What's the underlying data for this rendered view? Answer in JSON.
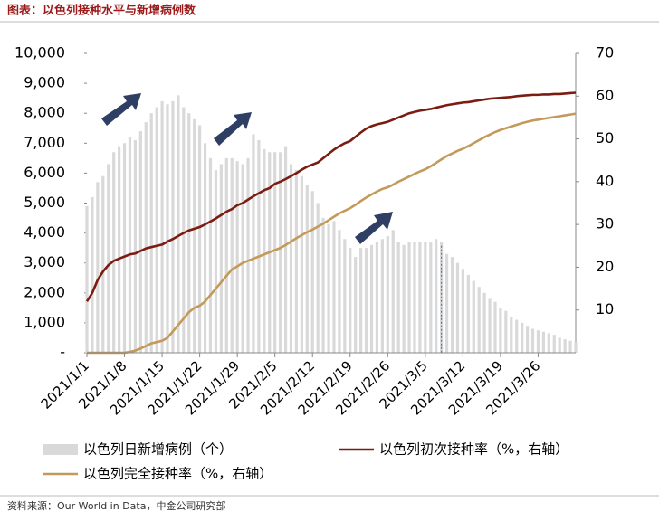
{
  "title": "图表：以色列接种水平与新增病例数",
  "source": "资料来源：Our World in Data，中金公司研究部",
  "chart_data": {
    "type": "bar",
    "categories": [
      "2021/1/1",
      null,
      null,
      null,
      null,
      null,
      null,
      "2021/1/8",
      null,
      null,
      null,
      null,
      null,
      null,
      "2021/1/15",
      null,
      null,
      null,
      null,
      null,
      null,
      "2021/1/22",
      null,
      null,
      null,
      null,
      null,
      null,
      "2021/1/29",
      null,
      null,
      null,
      null,
      null,
      null,
      "2021/2/5",
      null,
      null,
      null,
      null,
      null,
      null,
      "2021/2/12",
      null,
      null,
      null,
      null,
      null,
      null,
      "2021/2/19",
      null,
      null,
      null,
      null,
      null,
      null,
      "2021/2/26",
      null,
      null,
      null,
      null,
      null,
      null,
      "2021/3/5",
      null,
      null,
      null,
      null,
      null,
      null,
      "2021/3/12",
      null,
      null,
      null,
      null,
      null,
      null,
      "2021/3/19",
      null,
      null,
      null,
      null,
      null,
      null,
      "2021/3/26",
      null,
      null,
      null,
      null,
      null,
      null,
      null
    ],
    "series": [
      {
        "name": "以色列日新增病例（个）",
        "type": "bar",
        "color": "#d9d9d9",
        "values": [
          4900,
          5200,
          5700,
          5900,
          6300,
          6700,
          6900,
          7000,
          7200,
          7100,
          7400,
          7700,
          8000,
          8200,
          8400,
          8300,
          8400,
          8600,
          8200,
          8000,
          7800,
          7600,
          7000,
          6500,
          6100,
          6300,
          6500,
          6500,
          6400,
          6300,
          6500,
          7300,
          7100,
          6800,
          6700,
          6700,
          6700,
          6900,
          6300,
          6100,
          5900,
          5600,
          5400,
          5000,
          4500,
          4300,
          4400,
          4100,
          3800,
          3500,
          3200,
          3500,
          3500,
          3600,
          3700,
          3800,
          3900,
          4100,
          3700,
          3600,
          3700,
          3700,
          3700,
          3700,
          3700,
          3800,
          3700,
          3300,
          3200,
          3000,
          2800,
          2600,
          2400,
          2200,
          2000,
          1800,
          1700,
          1500,
          1400,
          1200,
          1100,
          1000,
          900,
          800,
          750,
          700,
          650,
          600,
          500,
          450,
          400,
          350
        ]
      },
      {
        "name": "以色列初次接种率（%，右轴）",
        "type": "line",
        "axis": "y2",
        "color": "#7b1c12",
        "values": [
          12,
          14,
          17,
          19,
          20.5,
          21.5,
          22,
          22.5,
          23,
          23.2,
          23.8,
          24.4,
          24.7,
          25,
          25.3,
          26,
          26.6,
          27.3,
          28,
          28.6,
          29,
          29.4,
          30,
          30.7,
          31.4,
          32.2,
          33,
          33.6,
          34.5,
          35,
          35.8,
          36.6,
          37.3,
          38,
          38.5,
          39.5,
          40,
          40.6,
          41.3,
          42,
          42.8,
          43.5,
          44,
          44.5,
          45.5,
          46.5,
          47.5,
          48.3,
          49,
          49.5,
          50.5,
          51.5,
          52.4,
          53,
          53.4,
          53.7,
          54,
          54.5,
          55,
          55.5,
          56,
          56.3,
          56.6,
          56.8,
          57,
          57.3,
          57.6,
          57.9,
          58.1,
          58.3,
          58.5,
          58.6,
          58.8,
          59,
          59.2,
          59.4,
          59.5,
          59.6,
          59.7,
          59.8,
          60,
          60.1,
          60.2,
          60.3,
          60.3,
          60.4,
          60.4,
          60.5,
          60.5,
          60.6,
          60.7,
          60.8
        ]
      },
      {
        "name": "以色列完全接种率（%，右轴）",
        "type": "line",
        "axis": "y2",
        "color": "#c49a5b",
        "values": [
          0,
          0,
          0,
          0,
          0,
          0,
          0,
          0,
          0.2,
          0.5,
          1,
          1.6,
          2.2,
          2.5,
          2.8,
          3.5,
          5,
          6.5,
          8,
          9.5,
          10.5,
          11,
          12,
          13.5,
          15,
          16.5,
          18,
          19.5,
          20.2,
          21,
          21.5,
          22,
          22.5,
          23,
          23.5,
          24,
          24.5,
          25.2,
          26,
          26.8,
          27.5,
          28.2,
          28.8,
          29.5,
          30.2,
          31,
          31.8,
          32.6,
          33.2,
          33.8,
          34.6,
          35.5,
          36.3,
          37,
          37.7,
          38.3,
          38.7,
          39.3,
          40,
          40.6,
          41.2,
          41.8,
          42.4,
          42.9,
          43.6,
          44.4,
          45.2,
          46,
          46.6,
          47.2,
          47.7,
          48.3,
          49,
          49.7,
          50.4,
          51,
          51.6,
          52.1,
          52.5,
          52.9,
          53.3,
          53.7,
          54,
          54.3,
          54.5,
          54.7,
          54.9,
          55.1,
          55.3,
          55.5,
          55.7,
          55.9
        ]
      }
    ],
    "ylim": [
      0,
      10000
    ],
    "yticks": [
      {
        "value": 0,
        "label": "-"
      },
      {
        "value": 1000,
        "label": "1,000"
      },
      {
        "value": 2000,
        "label": "2,000"
      },
      {
        "value": 3000,
        "label": "3,000"
      },
      {
        "value": 4000,
        "label": "4,000"
      },
      {
        "value": 5000,
        "label": "5,000"
      },
      {
        "value": 6000,
        "label": "6,000"
      },
      {
        "value": 7000,
        "label": "7,000"
      },
      {
        "value": 8000,
        "label": "8,000"
      },
      {
        "value": 9000,
        "label": "9,000"
      },
      {
        "value": 10000,
        "label": "10,000"
      }
    ],
    "y2lim": [
      0,
      70
    ],
    "y2ticks": [
      10,
      20,
      30,
      40,
      50,
      60,
      70
    ]
  }
}
